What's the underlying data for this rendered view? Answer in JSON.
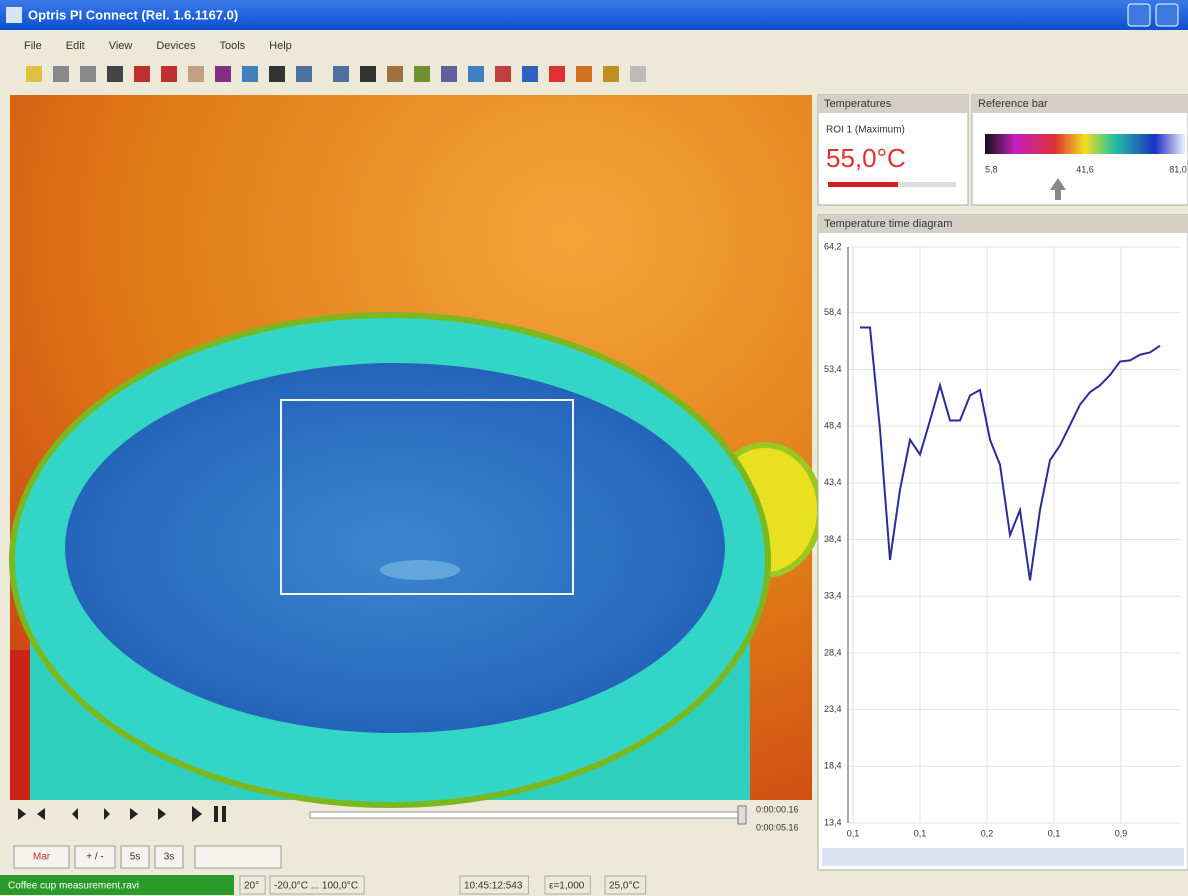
{
  "window": {
    "title": "Optris PI Connect (Rel. 1.6.1167.0)"
  },
  "menu": [
    "File",
    "Edit",
    "View",
    "Devices",
    "Tools",
    "Help"
  ],
  "temperatures_panel": {
    "title": "Temperatures",
    "measure_label": "ROI 1 (Maximum)",
    "value": "55,0°C"
  },
  "reference_bar": {
    "title": "Reference bar",
    "labels": [
      "5,8",
      "41,6",
      "81,0"
    ]
  },
  "temperature_diagram": {
    "title": "Temperature time diagram",
    "type": "line",
    "color": "#2b2b9a",
    "ylim": [
      13.4,
      64.2
    ],
    "yticks": [
      {
        "value": 13.4,
        "label": "13,4"
      },
      {
        "value": 18.4,
        "label": "18,4"
      },
      {
        "value": 23.4,
        "label": "23,4"
      },
      {
        "value": 28.4,
        "label": "28,4"
      },
      {
        "value": 33.4,
        "label": "33,4"
      },
      {
        "value": 38.4,
        "label": "38,4"
      },
      {
        "value": 43.4,
        "label": "43,4"
      },
      {
        "value": 48.4,
        "label": "48,4"
      },
      {
        "value": 53.4,
        "label": "53,4"
      },
      {
        "value": 58.4,
        "label": "58,4"
      },
      {
        "value": 64.2,
        "label": "64,2"
      }
    ],
    "xtick_labels": [
      "0,1",
      "0,1",
      "0,2",
      "0,1",
      "0,9"
    ],
    "values": [
      57.1,
      57.1,
      48.1,
      36.6,
      42.8,
      47.2,
      45.9,
      48.9,
      52.0,
      48.9,
      48.9,
      51.1,
      51.6,
      47.2,
      45.0,
      38.8,
      41.0,
      34.8,
      41.0,
      45.4,
      46.7,
      48.5,
      50.3,
      51.4,
      52.0,
      52.9,
      54.1,
      54.2,
      54.7,
      54.9,
      55.5
    ]
  },
  "playback": {
    "timestamps": [
      "0:00:00.16",
      "0:00:05.16"
    ],
    "buttons": [
      "Mar",
      "+ / -",
      "5s",
      "3s"
    ]
  },
  "status_bar": [
    "Coffee cup measurement.ravi",
    "20°",
    "-20,0°C ... 100,0°C",
    "10:45:12:543",
    "ε=1,000",
    "25,0°C"
  ]
}
